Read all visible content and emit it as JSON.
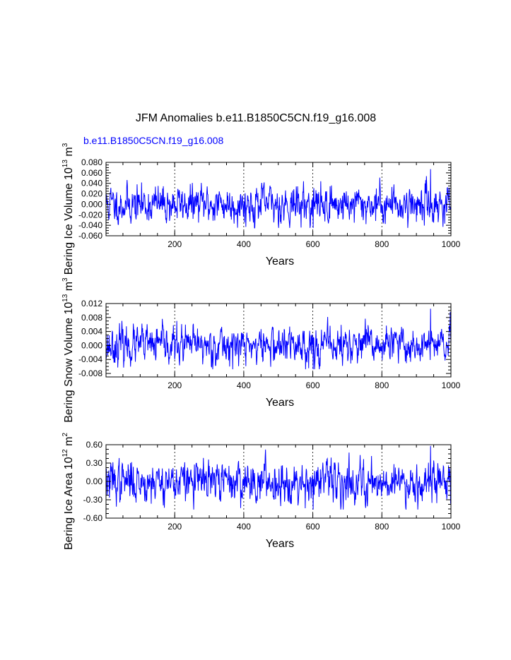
{
  "figure": {
    "title": "JFM Anomalies b.e11.B1850C5CN.f19_g16.008",
    "subtitle": "b.e11.B1850C5CN.f19_g16.008",
    "subtitle_color": "#0000ff",
    "line_color": "#0000ff"
  },
  "chart_data": [
    {
      "type": "line",
      "name": "ice-volume",
      "ylabel_main": "Bering Ice Volume 10",
      "ylabel_exp": "13",
      "ylabel_unit": " m",
      "ylabel_unit_exp": "3",
      "xlabel": "Years",
      "xlim": [
        1,
        1000
      ],
      "ylim": [
        -0.06,
        0.08
      ],
      "yticks": [
        "0.080",
        "0.060",
        "0.040",
        "0.020",
        "0.000",
        "-0.020",
        "-0.040",
        "-0.060"
      ],
      "yticks_values": [
        0.08,
        0.06,
        0.04,
        0.02,
        0.0,
        -0.02,
        -0.04,
        -0.06
      ],
      "xticks": [
        "200",
        "400",
        "600",
        "800",
        "1000"
      ],
      "xticks_values": [
        200,
        400,
        600,
        800,
        1000
      ],
      "grid_x": [
        200,
        400,
        600,
        800
      ],
      "amplitude": 0.016,
      "peak": 0.067,
      "trough": -0.045,
      "seed": 11
    },
    {
      "type": "line",
      "name": "snow-volume",
      "ylabel_main": "Bering Snow Volume 10",
      "ylabel_exp": "13",
      "ylabel_unit": " m",
      "ylabel_unit_exp": "3",
      "xlabel": "Years",
      "xlim": [
        1,
        1000
      ],
      "ylim": [
        -0.009,
        0.012
      ],
      "yticks": [
        "0.012",
        "0.008",
        "0.004",
        "0.000",
        "-0.004",
        "-0.008"
      ],
      "yticks_values": [
        0.012,
        0.008,
        0.004,
        0.0,
        -0.004,
        -0.008
      ],
      "xticks": [
        "200",
        "400",
        "600",
        "800",
        "1000"
      ],
      "xticks_values": [
        200,
        400,
        600,
        800,
        1000
      ],
      "grid_x": [
        200,
        400,
        600,
        800
      ],
      "amplitude": 0.0024,
      "peak": 0.0105,
      "trough": -0.0068,
      "seed": 23
    },
    {
      "type": "line",
      "name": "ice-area",
      "ylabel_main": "Bering Ice Area 10",
      "ylabel_exp": "12",
      "ylabel_unit": " m",
      "ylabel_unit_exp": "2",
      "xlabel": "Years",
      "xlim": [
        1,
        1000
      ],
      "ylim": [
        -0.6,
        0.6
      ],
      "yticks": [
        "0.60",
        "0.30",
        "0.00",
        "-0.30",
        "-0.60"
      ],
      "yticks_values": [
        0.6,
        0.3,
        0.0,
        -0.3,
        -0.6
      ],
      "xticks": [
        "200",
        "400",
        "600",
        "800",
        "1000"
      ],
      "xticks_values": [
        200,
        400,
        600,
        800,
        1000
      ],
      "grid_x": [
        200,
        400,
        600,
        800
      ],
      "amplitude": 0.15,
      "peak": 0.58,
      "trough": -0.46,
      "seed": 37
    }
  ]
}
